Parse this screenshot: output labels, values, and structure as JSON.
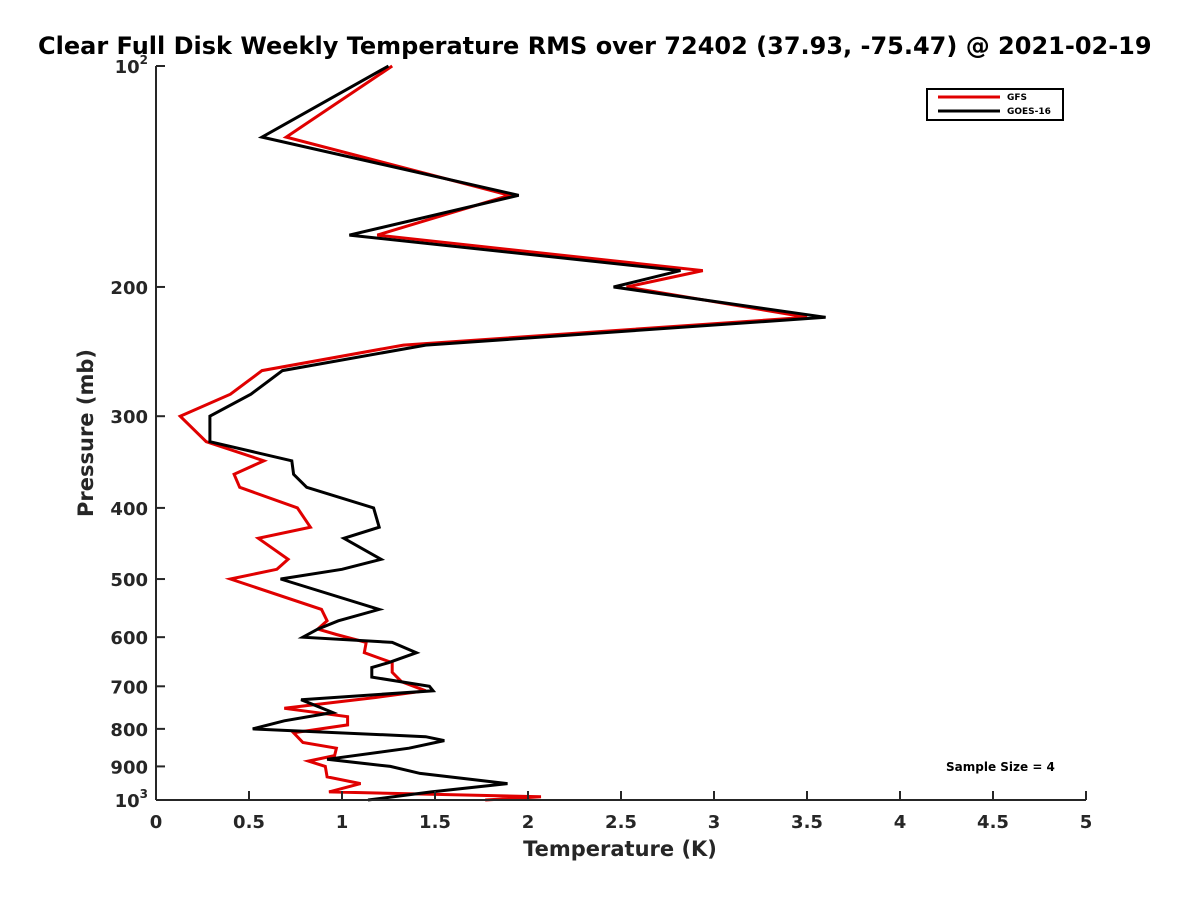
{
  "chart_data": {
    "type": "line",
    "title": "Clear Full Disk Weekly Temperature RMS over 72402 (37.93, -75.47) @ 2021-02-19",
    "xlabel": "Temperature (K)",
    "ylabel": "Pressure (mb)",
    "xlim": [
      0,
      5
    ],
    "ylim": [
      100,
      1000
    ],
    "y_scale": "log",
    "y_reversed": true,
    "grid": false,
    "legend_position": "top-right",
    "x_ticks": [
      "0",
      "0.5",
      "1",
      "1.5",
      "2",
      "2.5",
      "3",
      "3.5",
      "4",
      "4.5",
      "5"
    ],
    "y_ticks": [
      {
        "value": 100,
        "base": "10",
        "exp": "2"
      },
      {
        "value": 200,
        "text": "200"
      },
      {
        "value": 300,
        "text": "300"
      },
      {
        "value": 400,
        "text": "400"
      },
      {
        "value": 500,
        "text": "500"
      },
      {
        "value": 600,
        "text": "600"
      },
      {
        "value": 700,
        "text": "700"
      },
      {
        "value": 800,
        "text": "800"
      },
      {
        "value": 900,
        "text": "900"
      },
      {
        "value": 1000,
        "base": "10",
        "exp": "3"
      }
    ],
    "annotation": "Sample Size = 4",
    "series": [
      {
        "name": "GFS",
        "color": "#e00000",
        "points": [
          [
            1.27,
            100
          ],
          [
            0.7,
            125
          ],
          [
            1.9,
            150
          ],
          [
            1.19,
            170
          ],
          [
            2.94,
            190
          ],
          [
            2.53,
            200
          ],
          [
            3.5,
            220
          ],
          [
            1.33,
            240
          ],
          [
            0.57,
            260
          ],
          [
            0.4,
            280
          ],
          [
            0.13,
            300
          ],
          [
            0.27,
            325
          ],
          [
            0.58,
            345
          ],
          [
            0.42,
            360
          ],
          [
            0.45,
            375
          ],
          [
            0.76,
            400
          ],
          [
            0.83,
            425
          ],
          [
            0.55,
            440
          ],
          [
            0.71,
            470
          ],
          [
            0.65,
            485
          ],
          [
            0.4,
            500
          ],
          [
            0.89,
            550
          ],
          [
            0.92,
            570
          ],
          [
            0.87,
            585
          ],
          [
            0.97,
            595
          ],
          [
            1.13,
            610
          ],
          [
            1.12,
            630
          ],
          [
            1.27,
            650
          ],
          [
            1.27,
            670
          ],
          [
            1.32,
            690
          ],
          [
            1.45,
            710
          ],
          [
            1.18,
            725
          ],
          [
            0.69,
            750
          ],
          [
            1.03,
            770
          ],
          [
            1.03,
            790
          ],
          [
            0.74,
            810
          ],
          [
            0.79,
            835
          ],
          [
            0.97,
            850
          ],
          [
            0.96,
            870
          ],
          [
            0.82,
            885
          ],
          [
            0.91,
            900
          ],
          [
            0.92,
            930
          ],
          [
            1.1,
            950
          ],
          [
            0.93,
            975
          ],
          [
            2.07,
            990
          ],
          [
            1.77,
            1000
          ]
        ]
      },
      {
        "name": "GOES-16",
        "color": "#000000",
        "points": [
          [
            1.25,
            100
          ],
          [
            0.57,
            125
          ],
          [
            1.95,
            150
          ],
          [
            1.04,
            170
          ],
          [
            2.82,
            190
          ],
          [
            2.46,
            200
          ],
          [
            3.6,
            220
          ],
          [
            1.45,
            240
          ],
          [
            0.68,
            260
          ],
          [
            0.51,
            280
          ],
          [
            0.29,
            300
          ],
          [
            0.29,
            325
          ],
          [
            0.73,
            345
          ],
          [
            0.74,
            360
          ],
          [
            0.81,
            375
          ],
          [
            1.17,
            400
          ],
          [
            1.2,
            425
          ],
          [
            1.01,
            440
          ],
          [
            1.21,
            470
          ],
          [
            1.0,
            485
          ],
          [
            0.67,
            500
          ],
          [
            1.2,
            550
          ],
          [
            0.98,
            570
          ],
          [
            0.87,
            585
          ],
          [
            0.79,
            600
          ],
          [
            1.27,
            610
          ],
          [
            1.4,
            630
          ],
          [
            1.25,
            650
          ],
          [
            1.16,
            660
          ],
          [
            1.16,
            680
          ],
          [
            1.47,
            700
          ],
          [
            1.49,
            710
          ],
          [
            0.78,
            730
          ],
          [
            0.95,
            760
          ],
          [
            0.69,
            780
          ],
          [
            0.52,
            800
          ],
          [
            1.45,
            820
          ],
          [
            1.55,
            830
          ],
          [
            1.36,
            850
          ],
          [
            0.92,
            880
          ],
          [
            1.26,
            900
          ],
          [
            1.42,
            920
          ],
          [
            1.89,
            950
          ],
          [
            1.48,
            975
          ],
          [
            1.14,
            1000
          ]
        ]
      }
    ]
  }
}
